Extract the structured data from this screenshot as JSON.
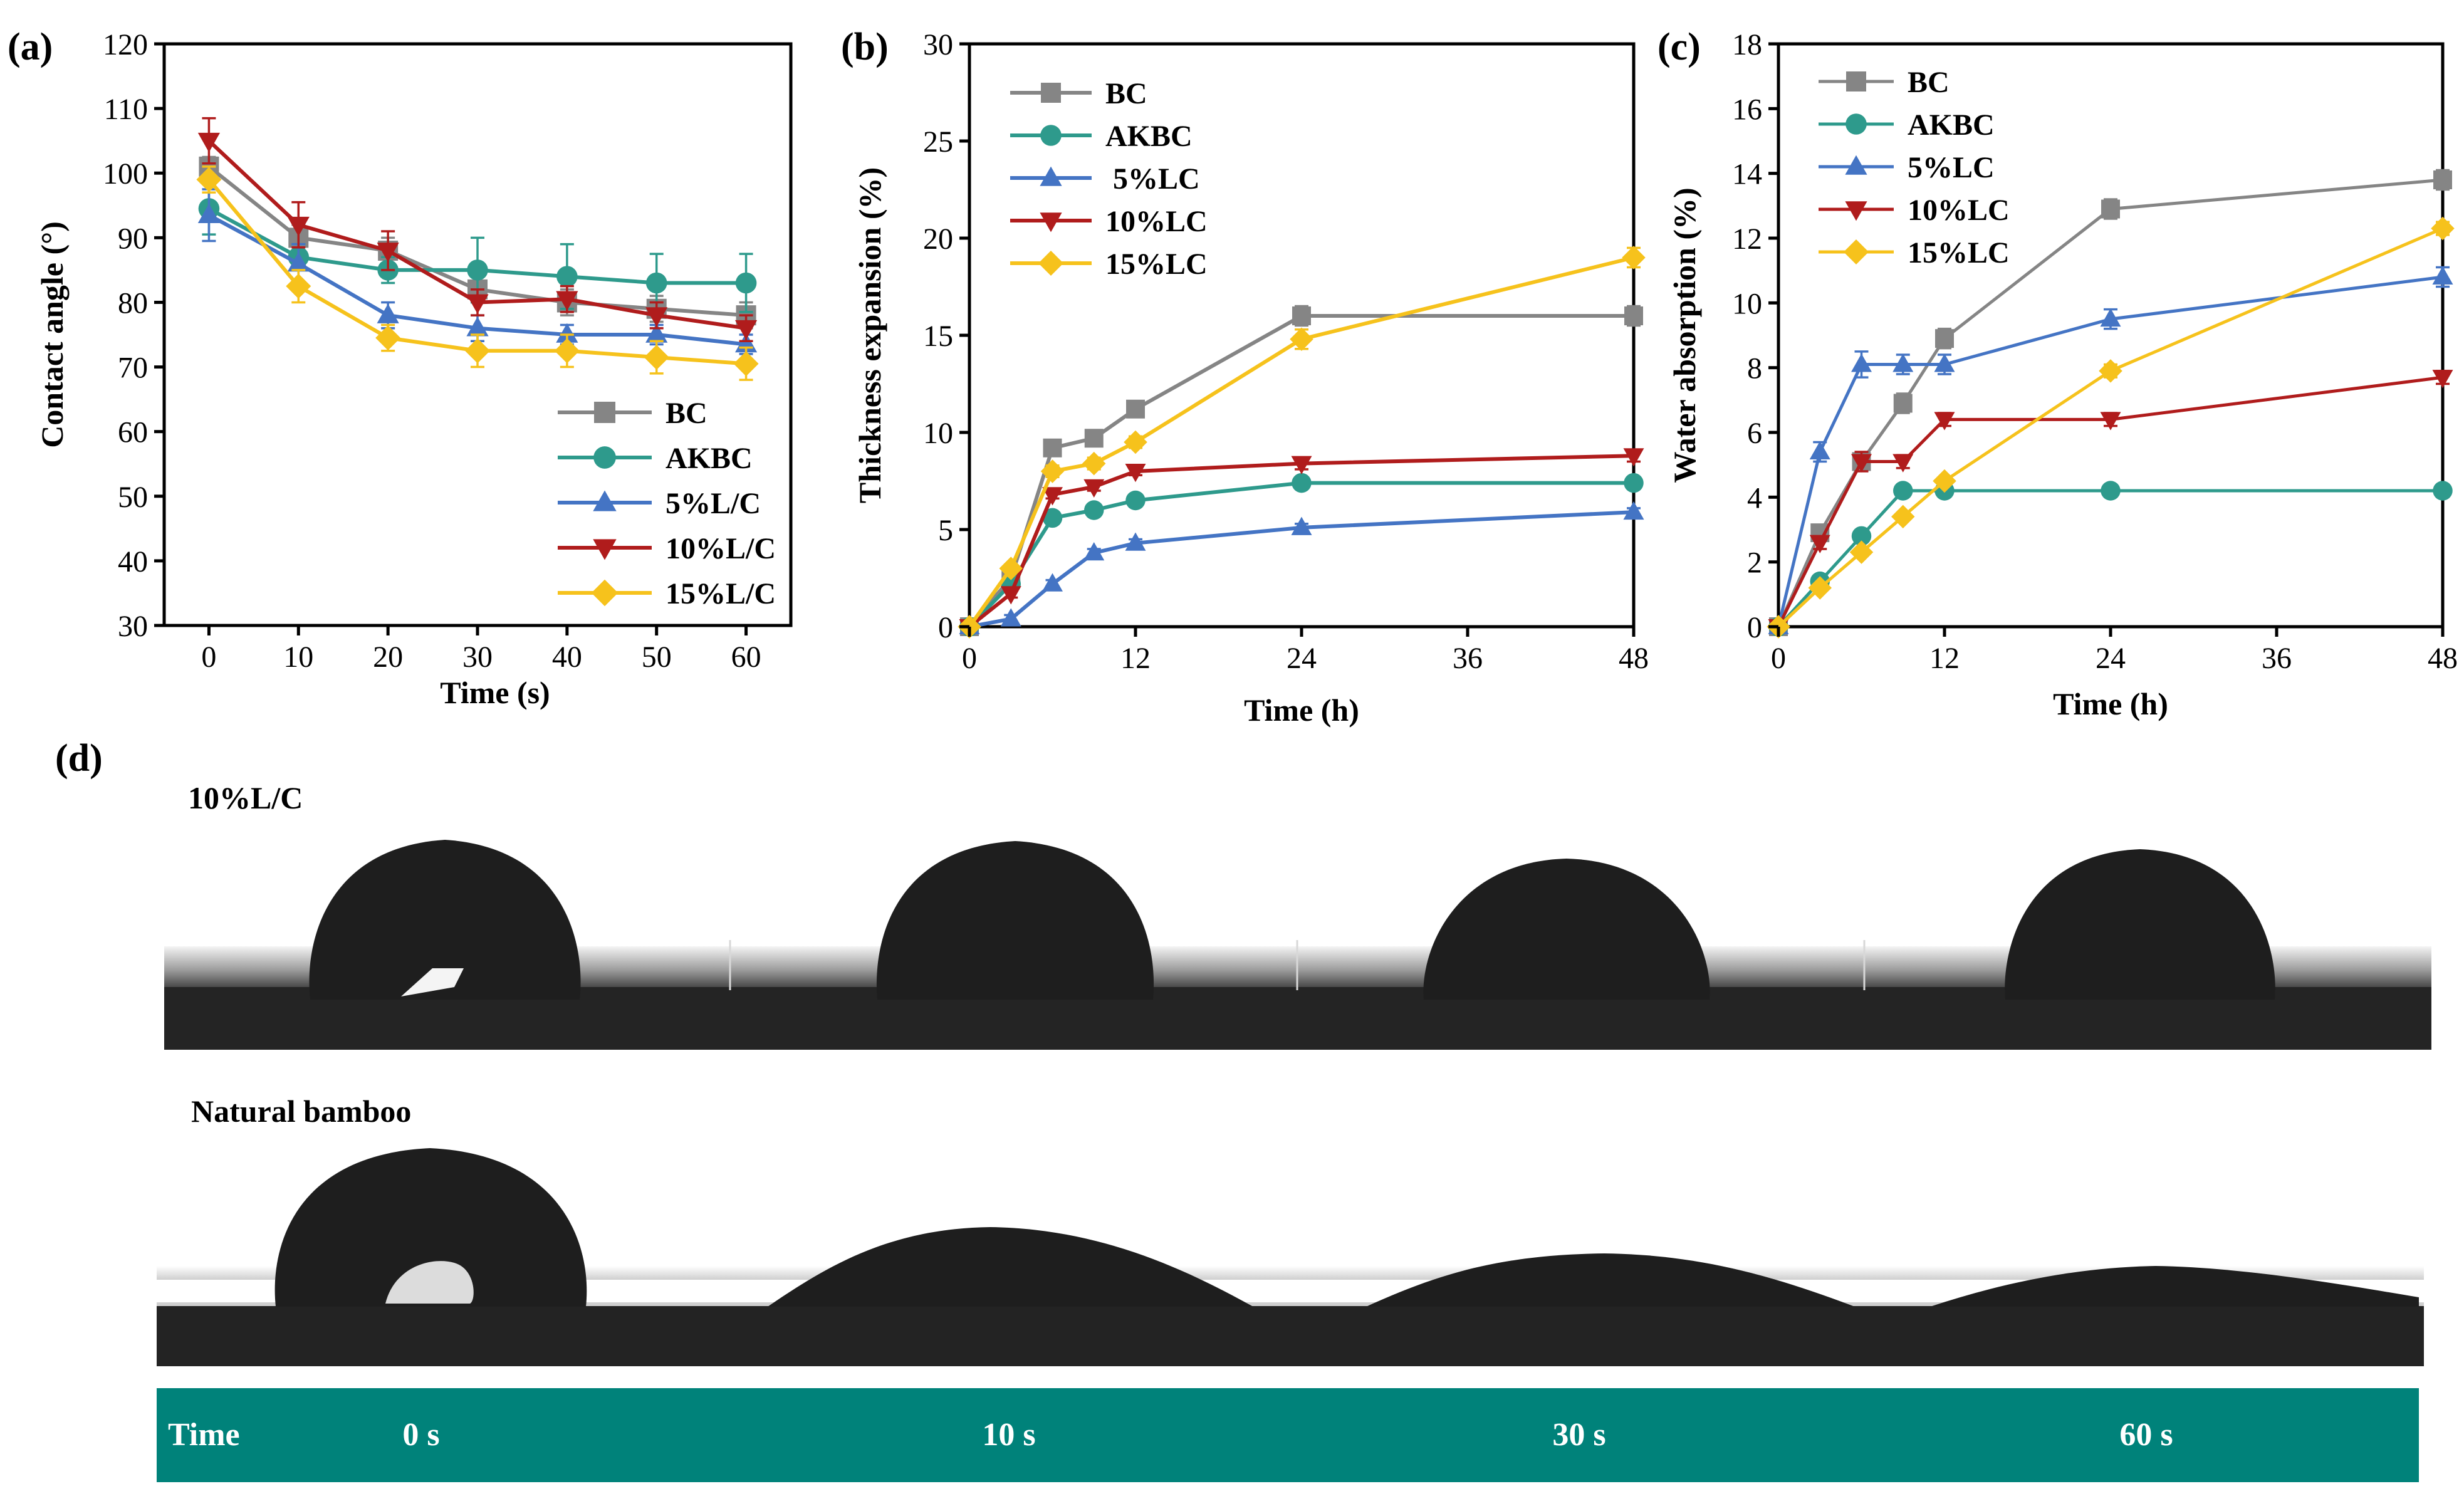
{
  "colors": {
    "BC": "#858585",
    "AKBC": "#2e9a8c",
    "LC5": "#4474c4",
    "LC10": "#b01c1c",
    "LC15": "#f6c21c",
    "time_bar": "#00827a",
    "time_text": "#ffffff"
  },
  "chart_data": [
    {
      "panel": "(a)",
      "type": "line",
      "xlabel": "Time (s)",
      "ylabel": "Contact angle (°)",
      "xlim": [
        -5,
        65
      ],
      "ylim": [
        30,
        120
      ],
      "xticks": [
        0,
        10,
        20,
        30,
        40,
        50,
        60
      ],
      "yticks": [
        30,
        40,
        50,
        60,
        70,
        80,
        90,
        100,
        110,
        120
      ],
      "legend_position": "bottom-right",
      "x": [
        0,
        10,
        20,
        30,
        40,
        50,
        60
      ],
      "series": [
        {
          "name": "BC",
          "marker": "square",
          "values": [
            101,
            90,
            88,
            82,
            80,
            79,
            78
          ],
          "errors": [
            1.5,
            2,
            2,
            2,
            2,
            2,
            2
          ]
        },
        {
          "name": "AKBC",
          "marker": "circle",
          "values": [
            94.5,
            87,
            85,
            85,
            84,
            83,
            83
          ],
          "errors": [
            4,
            2,
            2,
            5,
            5,
            4.5,
            4.5
          ]
        },
        {
          "name": "5%L/C",
          "marker": "triangle-up",
          "values": [
            93.5,
            86,
            78,
            76,
            75,
            75,
            73.5
          ],
          "errors": [
            4,
            3,
            2,
            2,
            1.5,
            1.5,
            1.5
          ]
        },
        {
          "name": "10%L/C",
          "marker": "triangle-down",
          "values": [
            105,
            92,
            88,
            80,
            80.5,
            78,
            76
          ],
          "errors": [
            3.5,
            3.5,
            3,
            2,
            2,
            2,
            2
          ]
        },
        {
          "name": "15%L/C",
          "marker": "diamond",
          "values": [
            99,
            82.5,
            74.5,
            72.5,
            72.5,
            71.5,
            70.5
          ],
          "errors": [
            2,
            2.5,
            2,
            2.5,
            2.5,
            2.5,
            2.5
          ]
        }
      ]
    },
    {
      "panel": "(b)",
      "type": "line",
      "xlabel": "Time (h)",
      "ylabel": "Thickness expansion (%)",
      "xlim": [
        0,
        48
      ],
      "ylim": [
        0,
        30
      ],
      "xticks": [
        0,
        12,
        24,
        36,
        48
      ],
      "yticks": [
        0,
        5,
        10,
        15,
        20,
        25,
        30
      ],
      "legend_position": "top-left",
      "x": [
        0,
        3,
        6,
        9,
        12,
        24,
        48
      ],
      "series": [
        {
          "name": "BC",
          "marker": "square",
          "values": [
            0,
            2.5,
            9.2,
            9.7,
            11.2,
            16,
            16
          ],
          "errors": [
            0,
            0.3,
            0.3,
            0.3,
            0.3,
            0.5,
            0.5
          ]
        },
        {
          "name": "AKBC",
          "marker": "circle",
          "values": [
            0,
            2.2,
            5.6,
            6.0,
            6.5,
            7.4,
            7.4
          ],
          "errors": [
            0,
            0.2,
            0.2,
            0.2,
            0.2,
            0.2,
            0.2
          ]
        },
        {
          "name": " 5%LC",
          "marker": "triangle-up",
          "values": [
            0,
            0.4,
            2.2,
            3.8,
            4.3,
            5.1,
            5.9
          ],
          "errors": [
            0,
            0.2,
            0.2,
            0.2,
            0.2,
            0.2,
            0.2
          ]
        },
        {
          "name": "10%LC",
          "marker": "triangle-down",
          "values": [
            0,
            1.7,
            6.8,
            7.2,
            8.0,
            8.4,
            8.8
          ],
          "errors": [
            0,
            0.2,
            0.2,
            0.2,
            0.2,
            0.3,
            0.3
          ]
        },
        {
          "name": "15%LC",
          "marker": "diamond",
          "values": [
            0,
            3.0,
            8.0,
            8.4,
            9.5,
            14.8,
            19
          ],
          "errors": [
            0,
            0.2,
            0.3,
            0.3,
            0.3,
            0.5,
            0.5
          ]
        }
      ]
    },
    {
      "panel": "(c)",
      "type": "line",
      "xlabel": "Time (h)",
      "ylabel": "Water absorption (%)",
      "xlim": [
        0,
        48
      ],
      "ylim": [
        0,
        18
      ],
      "xticks": [
        0,
        12,
        24,
        36,
        48
      ],
      "yticks": [
        0,
        2,
        4,
        6,
        8,
        10,
        12,
        14,
        16,
        18
      ],
      "legend_position": "top-left",
      "x": [
        0,
        3,
        6,
        9,
        12,
        24,
        48
      ],
      "series": [
        {
          "name": "BC",
          "marker": "square",
          "values": [
            0,
            2.9,
            5.1,
            6.9,
            8.9,
            12.9,
            13.8
          ],
          "errors": [
            0,
            0.2,
            0.2,
            0.3,
            0.3,
            0.3,
            0.3
          ]
        },
        {
          "name": "AKBC",
          "marker": "circle",
          "values": [
            0,
            1.4,
            2.8,
            4.2,
            4.2,
            4.2,
            4.2
          ],
          "errors": [
            0,
            0.1,
            0.1,
            0.1,
            0.1,
            0.1,
            0.1
          ]
        },
        {
          "name": "5%LC",
          "marker": "triangle-up",
          "values": [
            0,
            5.4,
            8.1,
            8.1,
            8.1,
            9.5,
            10.8
          ],
          "errors": [
            0,
            0.3,
            0.4,
            0.3,
            0.3,
            0.3,
            0.3
          ]
        },
        {
          "name": "10%LC",
          "marker": "triangle-down",
          "values": [
            0,
            2.6,
            5.1,
            5.1,
            6.4,
            6.4,
            7.7
          ],
          "errors": [
            0,
            0.2,
            0.3,
            0.2,
            0.2,
            0.2,
            0.2
          ]
        },
        {
          "name": "15%LC",
          "marker": "diamond",
          "values": [
            0,
            1.2,
            2.3,
            3.4,
            4.5,
            7.9,
            12.3
          ],
          "errors": [
            0,
            0.1,
            0.1,
            0.1,
            0.1,
            0.2,
            0.2
          ]
        }
      ]
    }
  ],
  "panel_d": {
    "label": "(d)",
    "row1_label": "10%L/C",
    "row2_label": "Natural bamboo",
    "time_label": "Time",
    "times": [
      "0 s",
      "10 s",
      "30 s",
      "60 s"
    ]
  }
}
